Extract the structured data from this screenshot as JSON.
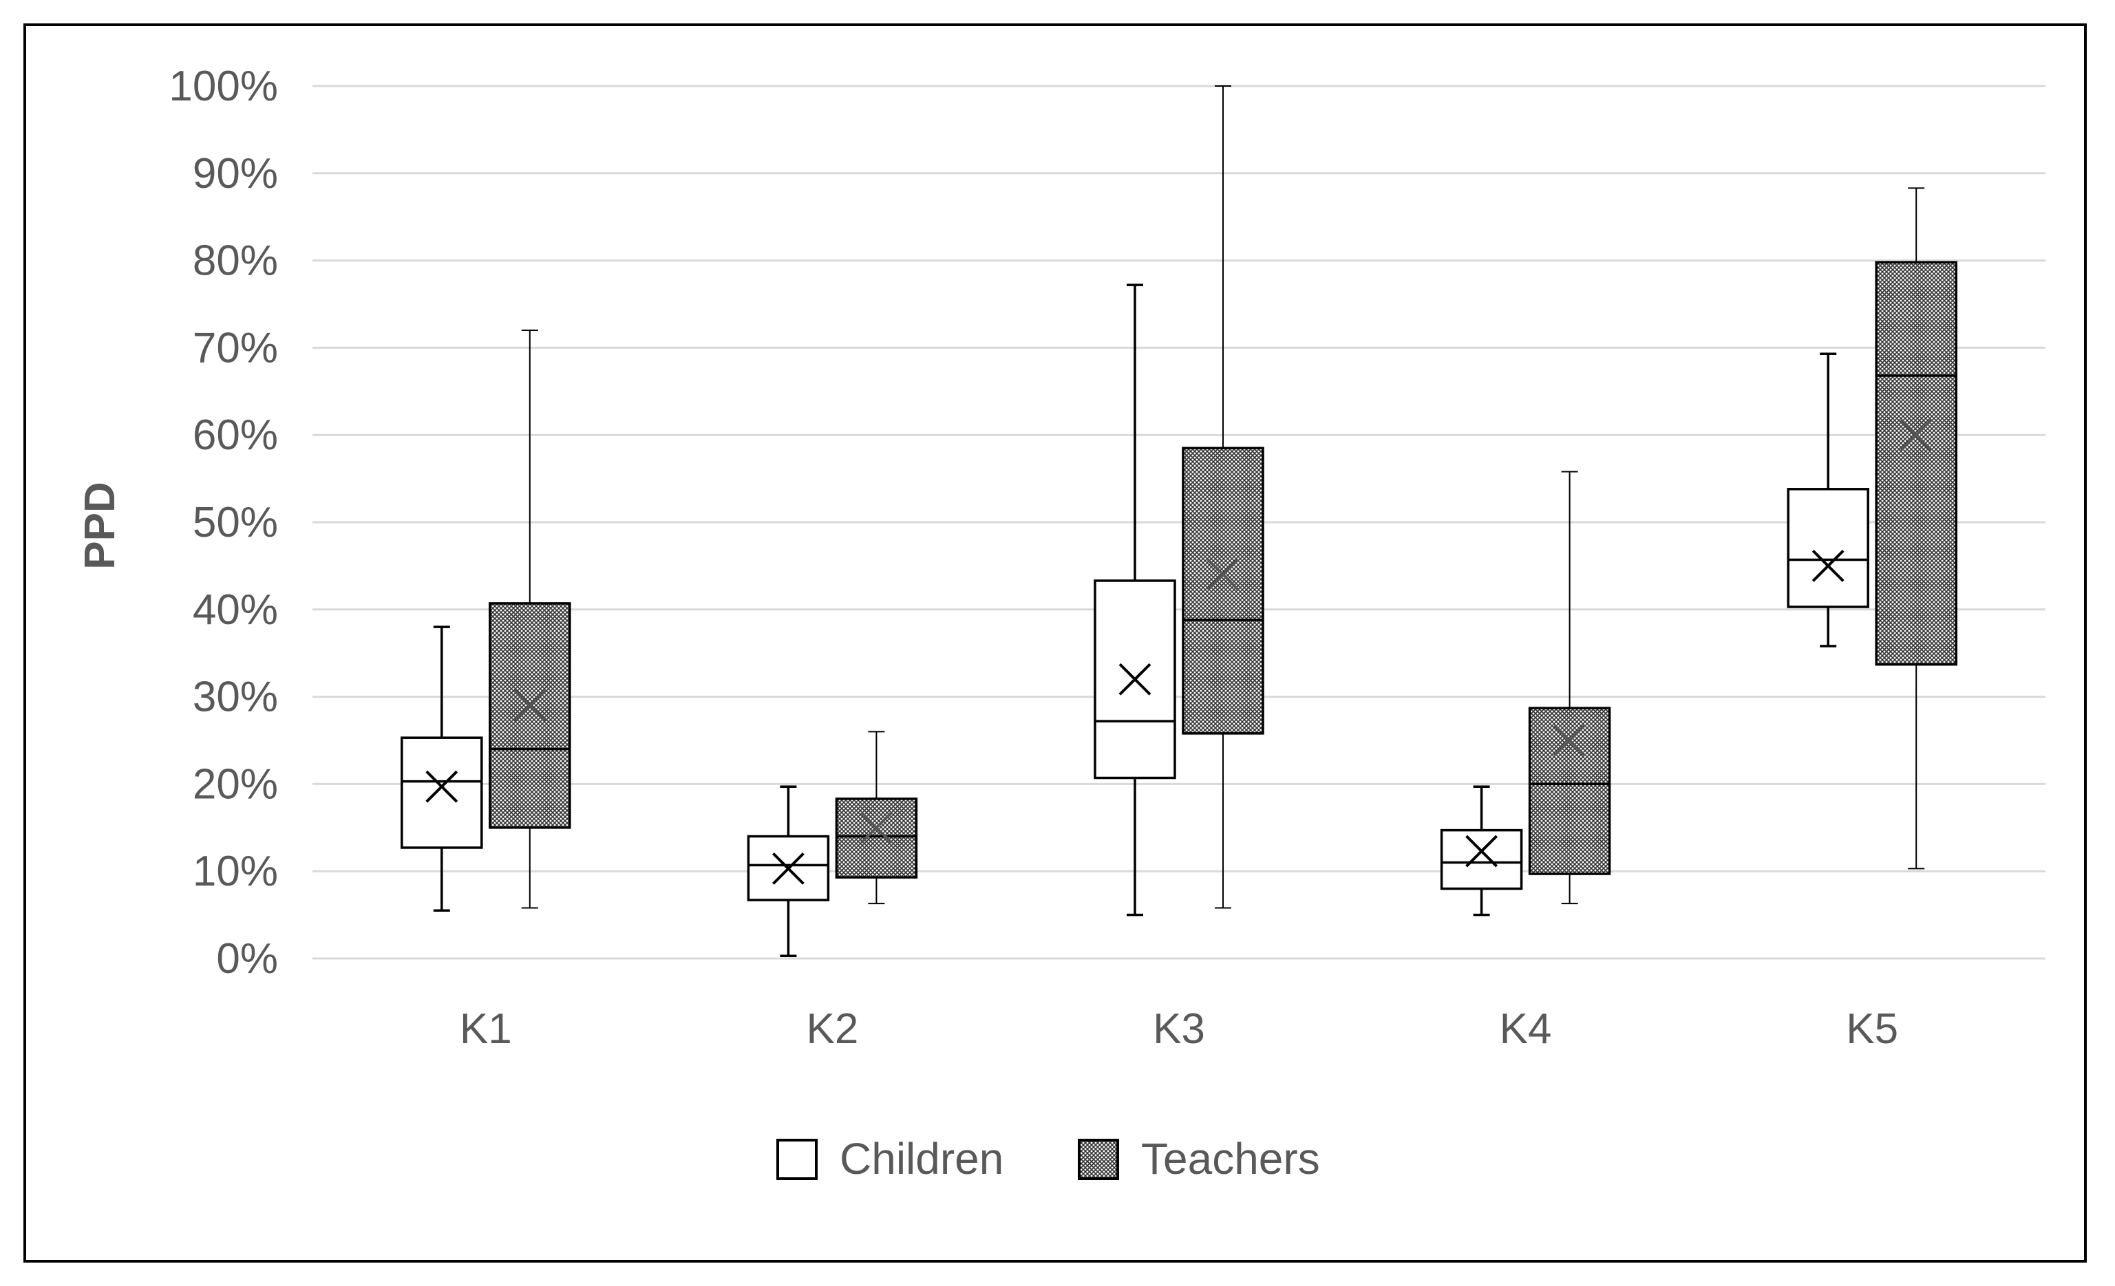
{
  "chart_data": {
    "type": "box",
    "title": "",
    "xlabel": "",
    "ylabel": "PPD",
    "ylim": [
      0,
      100
    ],
    "y_tick_labels": [
      "0%",
      "10%",
      "20%",
      "30%",
      "40%",
      "50%",
      "60%",
      "70%",
      "80%",
      "90%",
      "100%"
    ],
    "grid": true,
    "legend_position": "bottom",
    "categories": [
      "K1",
      "K2",
      "K3",
      "K4",
      "K5"
    ],
    "series": [
      {
        "name": "Children",
        "fill": "white",
        "boxes": [
          {
            "min": 5.5,
            "q1": 12.7,
            "median": 20.3,
            "q3": 25.3,
            "max": 38.0,
            "mean": 19.7
          },
          {
            "min": 0.3,
            "q1": 6.7,
            "median": 10.7,
            "q3": 14.0,
            "max": 19.7,
            "mean": 10.3
          },
          {
            "min": 5.0,
            "q1": 20.7,
            "median": 27.2,
            "q3": 43.3,
            "max": 77.2,
            "mean": 32.0
          },
          {
            "min": 5.0,
            "q1": 8.0,
            "median": 11.0,
            "q3": 14.7,
            "max": 19.7,
            "mean": 12.3
          },
          {
            "min": 35.8,
            "q1": 40.3,
            "median": 45.7,
            "q3": 53.8,
            "max": 69.3,
            "mean": 45.0
          }
        ]
      },
      {
        "name": "Teachers",
        "fill": "crosshatch",
        "boxes": [
          {
            "min": 5.8,
            "q1": 15.0,
            "median": 24.0,
            "q3": 40.7,
            "max": 72.0,
            "mean": 29.0
          },
          {
            "min": 6.3,
            "q1": 9.3,
            "median": 14.0,
            "q3": 18.3,
            "max": 26.0,
            "mean": 15.0
          },
          {
            "min": 5.8,
            "q1": 25.8,
            "median": 38.8,
            "q3": 58.5,
            "max": 100.0,
            "mean": 44.0
          },
          {
            "min": 6.3,
            "q1": 9.7,
            "median": 20.0,
            "q3": 28.7,
            "max": 55.8,
            "mean": 25.0
          },
          {
            "min": 10.3,
            "q1": 33.7,
            "median": 66.8,
            "q3": 79.8,
            "max": 88.3,
            "mean": 60.0
          }
        ]
      }
    ]
  },
  "colors": {
    "axis_text": "#595959",
    "gridline": "#d9d9d9",
    "frame": "#000000"
  }
}
